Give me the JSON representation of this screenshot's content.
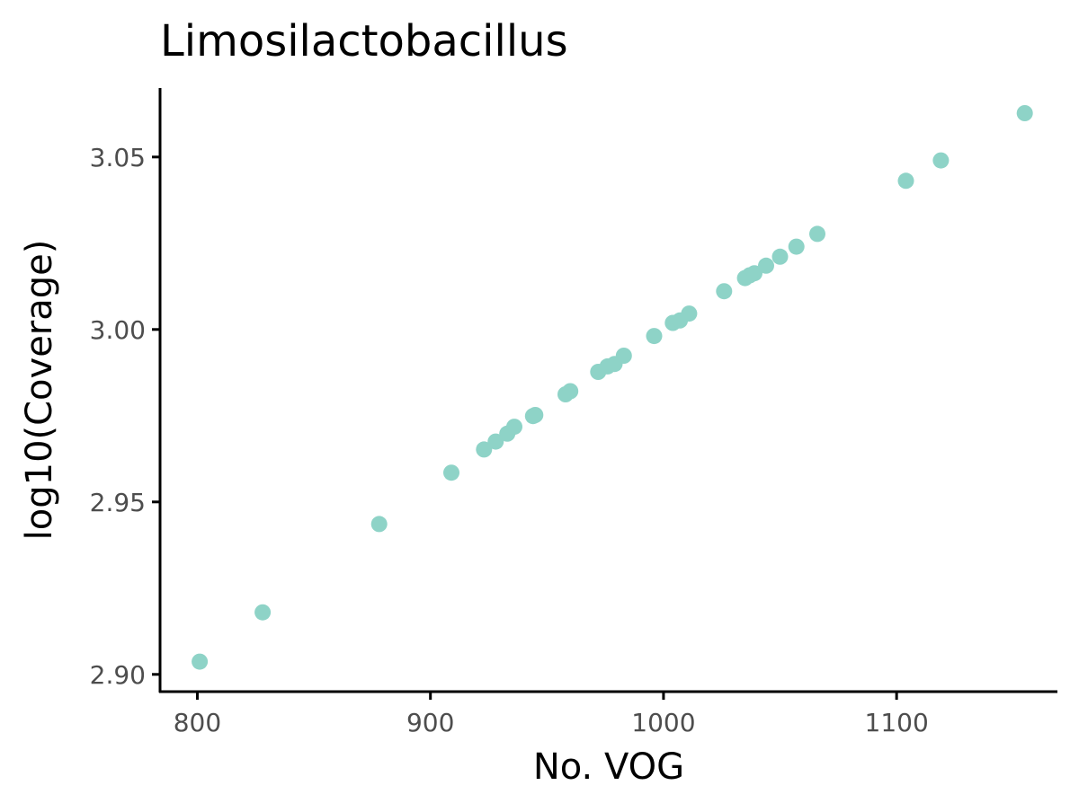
{
  "colors": {
    "point": "#8ED3C7",
    "axis": "#000000",
    "tick_label": "#4d4d4d",
    "background": "#ffffff"
  },
  "chart_data": {
    "type": "scatter",
    "title": "Limosilactobacillus",
    "xlabel": "No. VOG",
    "ylabel": "log10(Coverage)",
    "xlim": [
      784,
      1169
    ],
    "ylim": [
      2.895,
      3.07
    ],
    "x_ticks": [
      800,
      900,
      1000,
      1100
    ],
    "x_tick_labels": [
      "800",
      "900",
      "1000",
      "1100"
    ],
    "y_ticks": [
      2.9,
      2.95,
      3.0,
      3.05
    ],
    "y_tick_labels": [
      "2.90",
      "2.95",
      "3.00",
      "3.05"
    ],
    "grid": false,
    "legend": "none",
    "points": [
      {
        "x": 801,
        "y": 2.9037
      },
      {
        "x": 828,
        "y": 2.918
      },
      {
        "x": 878,
        "y": 2.9436
      },
      {
        "x": 909,
        "y": 2.9585
      },
      {
        "x": 923,
        "y": 2.9652
      },
      {
        "x": 928,
        "y": 2.9675
      },
      {
        "x": 933,
        "y": 2.9698
      },
      {
        "x": 936,
        "y": 2.9718
      },
      {
        "x": 944,
        "y": 2.9749
      },
      {
        "x": 945,
        "y": 2.9752
      },
      {
        "x": 958,
        "y": 2.9812
      },
      {
        "x": 960,
        "y": 2.9821
      },
      {
        "x": 972,
        "y": 2.9877
      },
      {
        "x": 976,
        "y": 2.9893
      },
      {
        "x": 979,
        "y": 2.99
      },
      {
        "x": 983,
        "y": 2.9924
      },
      {
        "x": 996,
        "y": 2.9981
      },
      {
        "x": 1004,
        "y": 3.0019
      },
      {
        "x": 1007,
        "y": 3.0026
      },
      {
        "x": 1011,
        "y": 3.0046
      },
      {
        "x": 1026,
        "y": 3.0111
      },
      {
        "x": 1035,
        "y": 3.0149
      },
      {
        "x": 1037,
        "y": 3.0157
      },
      {
        "x": 1039,
        "y": 3.0163
      },
      {
        "x": 1044,
        "y": 3.0185
      },
      {
        "x": 1050,
        "y": 3.0211
      },
      {
        "x": 1057,
        "y": 3.024
      },
      {
        "x": 1066,
        "y": 3.0277
      },
      {
        "x": 1104,
        "y": 3.0431
      },
      {
        "x": 1119,
        "y": 3.049
      },
      {
        "x": 1155,
        "y": 3.0627
      }
    ]
  }
}
